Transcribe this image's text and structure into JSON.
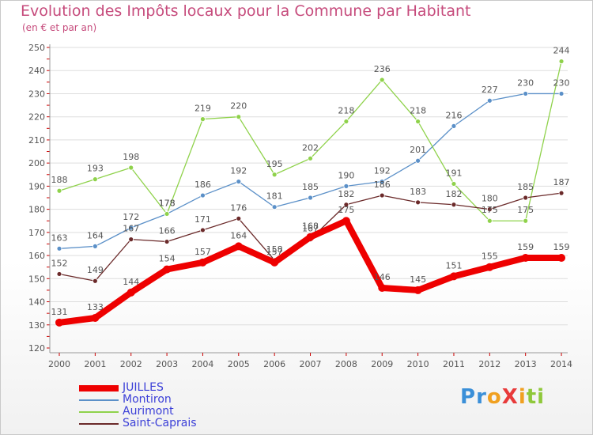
{
  "chart_data": {
    "type": "line",
    "title": "Evolution des Impôts locaux pour la Commune par Habitant",
    "subtitle": "(en € et par an)",
    "xlabel": "",
    "ylabel": "",
    "ylim": [
      120,
      250
    ],
    "y_ticks": [
      120,
      130,
      140,
      150,
      160,
      170,
      180,
      190,
      200,
      210,
      220,
      230,
      240,
      250
    ],
    "categories": [
      "2000",
      "2001",
      "2002",
      "2003",
      "2004",
      "2005",
      "2006",
      "2007",
      "2008",
      "2009",
      "2010",
      "2011",
      "2012",
      "2013",
      "2014"
    ],
    "grid": "horizontal",
    "legend_position": "bottom-left",
    "series": [
      {
        "name": "Montiron",
        "color": "#5b90c8",
        "values": [
          163,
          164,
          172,
          178,
          186,
          192,
          181,
          185,
          190,
          192,
          201,
          216,
          227,
          230,
          230
        ]
      },
      {
        "name": "Aurimont",
        "color": "#8fd24b",
        "values": [
          188,
          193,
          198,
          178,
          219,
          220,
          195,
          202,
          218,
          236,
          218,
          191,
          175,
          175,
          244
        ]
      },
      {
        "name": "Saint-Caprais",
        "color": "#6b2a2a",
        "values": [
          152,
          149,
          167,
          166,
          171,
          176,
          158,
          167,
          182,
          186,
          183,
          182,
          180,
          185,
          187
        ]
      },
      {
        "name": "JUILLES",
        "color": "#ee0000",
        "values": [
          131,
          133,
          144,
          154,
          157,
          164,
          157,
          168,
          175,
          146,
          145,
          151,
          155,
          159,
          159
        ]
      }
    ],
    "legend_order": [
      "JUILLES",
      "Montiron",
      "Aurimont",
      "Saint-Caprais"
    ],
    "highlight_series": "JUILLES"
  },
  "logo": {
    "letters": [
      {
        "char": "P",
        "color": "#3a8fd8"
      },
      {
        "char": "r",
        "color": "#3a8fd8"
      },
      {
        "char": "o",
        "color": "#f0a020"
      },
      {
        "char": "X",
        "color": "#e83a3a"
      },
      {
        "char": "i",
        "color": "#f0a020"
      },
      {
        "char": "t",
        "color": "#8fc83a"
      },
      {
        "char": "i",
        "color": "#8fc83a"
      }
    ]
  },
  "colors": {
    "title": "#c64b7c",
    "axis": "#9a9a9a",
    "grid": "#dddddd",
    "tick_mark": "#cc0000",
    "label": "#555555",
    "legend_text": "#3c40d8"
  }
}
